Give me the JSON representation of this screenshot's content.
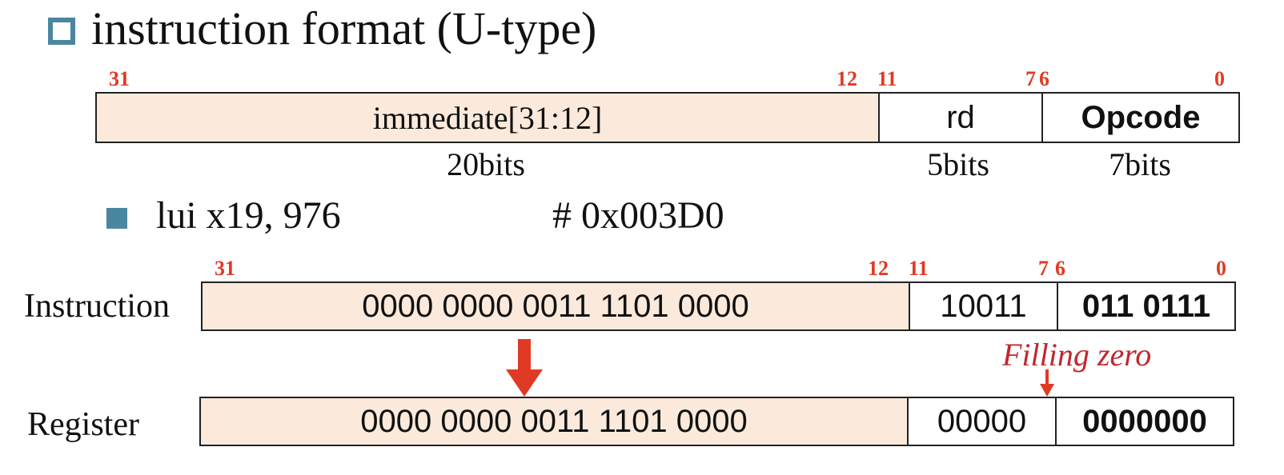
{
  "title": "instruction format (U-type)",
  "format": {
    "bit_labels": [
      "31",
      "12",
      "11",
      "7",
      "6",
      "0"
    ],
    "fields": [
      {
        "name": "immediate[31:12]",
        "size": "20bits"
      },
      {
        "name": "rd",
        "size": "5bits"
      },
      {
        "name": "Opcode",
        "size": "7bits"
      }
    ]
  },
  "example": {
    "instruction": "lui x19, 976",
    "comment": "# 0x003D0"
  },
  "encoding": {
    "bit_labels": [
      "31",
      "12",
      "11",
      "7",
      "6",
      "0"
    ],
    "instruction_label": "Instruction",
    "instruction_fields": [
      "0000 0000 0011 1101 0000",
      "10011",
      "011 0111"
    ],
    "register_label": "Register",
    "register_fields": [
      "0000 0000 0011 1101 0000",
      "00000",
      "0000000"
    ],
    "annotation": "Filling zero"
  },
  "colors": {
    "bullet": "#4a86a0",
    "bit_number": "#e03a24",
    "immediate_fill": "#fbeadb",
    "arrow": "#e03a24"
  }
}
